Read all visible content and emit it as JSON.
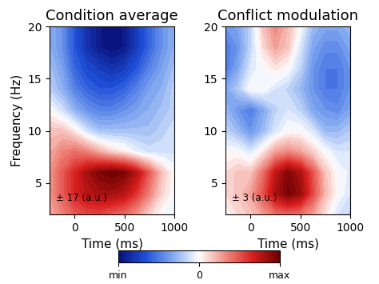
{
  "chart_data": [
    {
      "type": "heatmap",
      "title": "Condition average",
      "xlabel": "Time (ms)",
      "ylabel": "Frequency (Hz)",
      "annotation": "± 17 (a.u.)",
      "x": [
        -250,
        -125,
        0,
        125,
        250,
        375,
        500,
        625,
        750,
        875,
        1000
      ],
      "y": [
        2,
        4,
        6,
        8,
        10,
        12,
        14,
        16,
        18,
        20
      ],
      "cells": [
        [
          4,
          6,
          8,
          9,
          9,
          8,
          7,
          5,
          2,
          0,
          -1
        ],
        [
          5,
          8,
          11,
          13,
          14,
          14,
          13,
          10,
          6,
          2,
          0
        ],
        [
          5,
          8,
          11,
          14,
          16,
          17,
          16,
          13,
          8,
          3,
          0
        ],
        [
          4,
          6,
          7,
          6,
          4,
          2,
          1,
          -1,
          -2,
          -2,
          -2
        ],
        [
          3,
          3,
          1,
          -2,
          -4,
          -4,
          -4,
          -4,
          -4,
          -3,
          -2
        ],
        [
          0,
          -2,
          -5,
          -7,
          -8,
          -8,
          -7,
          -6,
          -5,
          -4,
          -3
        ],
        [
          -3,
          -5,
          -8,
          -10,
          -11,
          -11,
          -10,
          -8,
          -6,
          -5,
          -3
        ],
        [
          -4,
          -6,
          -10,
          -12,
          -13,
          -14,
          -13,
          -11,
          -8,
          -6,
          -4
        ],
        [
          -5,
          -7,
          -11,
          -14,
          -16,
          -17,
          -16,
          -13,
          -10,
          -7,
          -5
        ],
        [
          -5,
          -7,
          -11,
          -14,
          -16,
          -17,
          -16,
          -13,
          -10,
          -7,
          -5
        ]
      ],
      "clim": [
        -17,
        17
      ],
      "xlim": [
        -250,
        1000
      ],
      "xticks": [
        0,
        500,
        1000
      ],
      "ylim": [
        2,
        20
      ],
      "yticks": [
        5,
        10,
        15,
        20
      ]
    },
    {
      "type": "heatmap",
      "title": "Conflict modulation",
      "xlabel": "Time (ms)",
      "annotation": "± 3 (a.u.)",
      "x": [
        -250,
        -125,
        0,
        125,
        250,
        375,
        500,
        625,
        750,
        875,
        1000
      ],
      "y": [
        2,
        4,
        6,
        8,
        10,
        12,
        14,
        16,
        18,
        20
      ],
      "cells": [
        [
          0,
          0.3,
          0.5,
          0.8,
          1.2,
          1.3,
          1.2,
          0.8,
          0.2,
          -0.3,
          -0.5
        ],
        [
          0.3,
          0.5,
          0.8,
          1.5,
          2.4,
          2.9,
          2.6,
          1.6,
          0.6,
          0,
          -0.3
        ],
        [
          0.3,
          0.5,
          0.5,
          1.2,
          2.2,
          2.8,
          2.4,
          1.5,
          0.5,
          0,
          -0.2
        ],
        [
          0,
          0,
          -0.3,
          0.2,
          0.8,
          1.0,
          0.8,
          0.4,
          0,
          -0.3,
          -0.3
        ],
        [
          -0.5,
          -0.8,
          -1.2,
          -0.8,
          -0.3,
          0,
          0,
          -0.3,
          -0.8,
          -0.8,
          -0.6
        ],
        [
          -0.8,
          -1.2,
          -1.5,
          -1.0,
          -0.5,
          -0.3,
          -0.5,
          -1.0,
          -1.2,
          -1.3,
          -1.0
        ],
        [
          -1.0,
          -0.6,
          0,
          0,
          -0.3,
          -0.5,
          -0.8,
          -1.2,
          -1.5,
          -1.5,
          -1.2
        ],
        [
          -1.5,
          -1.0,
          -0.3,
          0,
          0.2,
          0,
          -0.5,
          -1.2,
          -1.5,
          -1.5,
          -1.2
        ],
        [
          -1.5,
          -1.2,
          -0.5,
          0.3,
          0.8,
          0.5,
          -0.3,
          -1.0,
          -1.3,
          -1.3,
          -1.0
        ],
        [
          -1.2,
          -1.0,
          -0.5,
          0.5,
          1.0,
          0.6,
          0,
          -0.8,
          -1.0,
          -1.0,
          -0.8
        ]
      ],
      "clim": [
        -3,
        3
      ],
      "xlim": [
        -250,
        1000
      ],
      "xticks": [
        0,
        500,
        1000
      ],
      "ylim": [
        2,
        20
      ],
      "yticks": [
        5,
        10,
        15,
        20
      ]
    }
  ],
  "colorbar": {
    "range": [
      -1,
      1
    ],
    "ticks": [
      {
        "value": -1,
        "label": "min"
      },
      0,
      {
        "value": 1,
        "label": "max"
      }
    ]
  }
}
